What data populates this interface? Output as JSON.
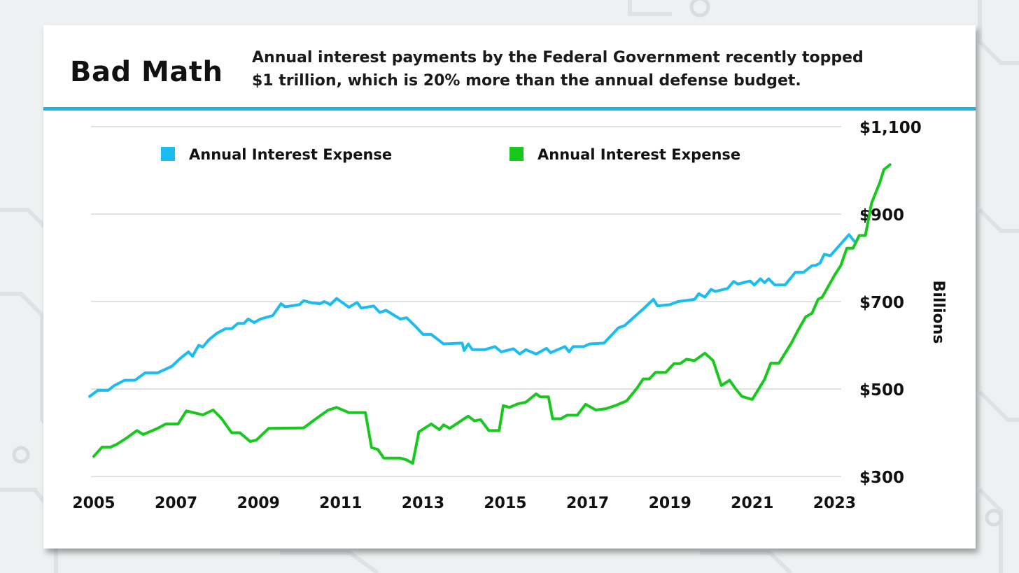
{
  "header": {
    "title": "Bad Math",
    "subtitle_line1": "Annual interest payments by the Federal Government recently topped",
    "subtitle_line2": "$1 trillion, which is 20% more than the annual defense budget."
  },
  "colors": {
    "accent": "#18b4ec",
    "series_blue": "#1bbcf0",
    "series_green": "#17c91c",
    "grid": "#cfcfcf"
  },
  "chart_data": {
    "type": "line",
    "title": "Bad Math",
    "ylabel": "Billions",
    "ylim": [
      300,
      1100
    ],
    "xlim": [
      2005,
      2023.5
    ],
    "yticks": [
      {
        "value": 300,
        "label": "$300"
      },
      {
        "value": 500,
        "label": "$500"
      },
      {
        "value": 700,
        "label": "$700"
      },
      {
        "value": 900,
        "label": "$900"
      },
      {
        "value": 1100,
        "label": "$1,100"
      }
    ],
    "xticks": [
      {
        "value": 2005,
        "label": "2005"
      },
      {
        "value": 2007,
        "label": "2007"
      },
      {
        "value": 2009,
        "label": "2009"
      },
      {
        "value": 2011,
        "label": "2011"
      },
      {
        "value": 2013,
        "label": "2013"
      },
      {
        "value": 2015,
        "label": "2015"
      },
      {
        "value": 2017,
        "label": "2017"
      },
      {
        "value": 2019,
        "label": "2019"
      },
      {
        "value": 2021,
        "label": "2021"
      },
      {
        "value": 2023,
        "label": "2023"
      }
    ],
    "legend": "top",
    "series": [
      {
        "name": "Annual Interest Expense",
        "color": "#1bbcf0",
        "points": [
          [
            2004.9,
            483
          ],
          [
            2005.1,
            497
          ],
          [
            2005.35,
            497
          ],
          [
            2005.5,
            508
          ],
          [
            2005.75,
            520
          ],
          [
            2006.0,
            520
          ],
          [
            2006.25,
            537
          ],
          [
            2006.55,
            537
          ],
          [
            2006.9,
            552
          ],
          [
            2007.1,
            570
          ],
          [
            2007.3,
            585
          ],
          [
            2007.4,
            575
          ],
          [
            2007.55,
            600
          ],
          [
            2007.65,
            596
          ],
          [
            2007.8,
            613
          ],
          [
            2008.0,
            628
          ],
          [
            2008.2,
            638
          ],
          [
            2008.35,
            638
          ],
          [
            2008.5,
            650
          ],
          [
            2008.65,
            650
          ],
          [
            2008.75,
            660
          ],
          [
            2008.9,
            652
          ],
          [
            2009.05,
            660
          ],
          [
            2009.35,
            668
          ],
          [
            2009.55,
            695
          ],
          [
            2009.65,
            688
          ],
          [
            2010.0,
            693
          ],
          [
            2010.1,
            702
          ],
          [
            2010.3,
            697
          ],
          [
            2010.5,
            695
          ],
          [
            2010.6,
            700
          ],
          [
            2010.75,
            693
          ],
          [
            2010.9,
            707
          ],
          [
            2011.2,
            687
          ],
          [
            2011.4,
            698
          ],
          [
            2011.5,
            685
          ],
          [
            2011.8,
            690
          ],
          [
            2011.95,
            675
          ],
          [
            2012.1,
            680
          ],
          [
            2012.45,
            660
          ],
          [
            2012.6,
            663
          ],
          [
            2012.8,
            645
          ],
          [
            2013.0,
            625
          ],
          [
            2013.2,
            625
          ],
          [
            2013.5,
            603
          ],
          [
            2013.95,
            605
          ],
          [
            2014.0,
            588
          ],
          [
            2014.1,
            603
          ],
          [
            2014.2,
            590
          ],
          [
            2014.5,
            590
          ],
          [
            2014.75,
            597
          ],
          [
            2014.9,
            585
          ],
          [
            2015.2,
            592
          ],
          [
            2015.35,
            580
          ],
          [
            2015.5,
            590
          ],
          [
            2015.75,
            580
          ],
          [
            2016.0,
            593
          ],
          [
            2016.1,
            583
          ],
          [
            2016.45,
            597
          ],
          [
            2016.55,
            585
          ],
          [
            2016.65,
            597
          ],
          [
            2016.9,
            597
          ],
          [
            2017.05,
            603
          ],
          [
            2017.4,
            605
          ],
          [
            2017.75,
            640
          ],
          [
            2017.9,
            645
          ],
          [
            2018.35,
            683
          ],
          [
            2018.6,
            705
          ],
          [
            2018.7,
            690
          ],
          [
            2019.0,
            693
          ],
          [
            2019.2,
            700
          ],
          [
            2019.6,
            705
          ],
          [
            2019.7,
            718
          ],
          [
            2019.85,
            710
          ],
          [
            2020.0,
            728
          ],
          [
            2020.1,
            723
          ],
          [
            2020.4,
            730
          ],
          [
            2020.55,
            746
          ],
          [
            2020.65,
            740
          ],
          [
            2020.95,
            747
          ],
          [
            2021.05,
            738
          ],
          [
            2021.2,
            752
          ],
          [
            2021.3,
            743
          ],
          [
            2021.4,
            752
          ],
          [
            2021.55,
            738
          ],
          [
            2021.8,
            738
          ],
          [
            2022.05,
            767
          ],
          [
            2022.25,
            767
          ],
          [
            2022.45,
            782
          ],
          [
            2022.55,
            783
          ],
          [
            2022.65,
            788
          ],
          [
            2022.75,
            808
          ],
          [
            2022.9,
            805
          ],
          [
            2023.35,
            853
          ],
          [
            2023.48,
            838
          ]
        ]
      },
      {
        "name": "Annual Interest Expense",
        "color": "#17c91c",
        "points": [
          [
            2005.0,
            346
          ],
          [
            2005.2,
            367
          ],
          [
            2005.4,
            367
          ],
          [
            2005.55,
            373
          ],
          [
            2005.8,
            388
          ],
          [
            2006.05,
            405
          ],
          [
            2006.2,
            396
          ],
          [
            2006.55,
            410
          ],
          [
            2006.75,
            420
          ],
          [
            2007.05,
            420
          ],
          [
            2007.25,
            450
          ],
          [
            2007.65,
            441
          ],
          [
            2007.9,
            452
          ],
          [
            2008.1,
            433
          ],
          [
            2008.35,
            400
          ],
          [
            2008.55,
            400
          ],
          [
            2008.8,
            380
          ],
          [
            2008.95,
            383
          ],
          [
            2009.25,
            410
          ],
          [
            2010.1,
            411
          ],
          [
            2010.4,
            432
          ],
          [
            2010.7,
            452
          ],
          [
            2010.9,
            458
          ],
          [
            2011.2,
            446
          ],
          [
            2011.6,
            446
          ],
          [
            2011.75,
            366
          ],
          [
            2011.9,
            362
          ],
          [
            2012.05,
            342
          ],
          [
            2012.45,
            342
          ],
          [
            2012.6,
            338
          ],
          [
            2012.75,
            330
          ],
          [
            2012.9,
            402
          ],
          [
            2013.2,
            420
          ],
          [
            2013.4,
            407
          ],
          [
            2013.5,
            418
          ],
          [
            2013.65,
            410
          ],
          [
            2014.0,
            432
          ],
          [
            2014.1,
            438
          ],
          [
            2014.25,
            427
          ],
          [
            2014.4,
            430
          ],
          [
            2014.6,
            405
          ],
          [
            2014.85,
            405
          ],
          [
            2014.95,
            462
          ],
          [
            2015.1,
            458
          ],
          [
            2015.3,
            466
          ],
          [
            2015.5,
            470
          ],
          [
            2015.75,
            489
          ],
          [
            2015.85,
            482
          ],
          [
            2016.05,
            482
          ],
          [
            2016.15,
            432
          ],
          [
            2016.35,
            432
          ],
          [
            2016.5,
            440
          ],
          [
            2016.75,
            440
          ],
          [
            2016.95,
            465
          ],
          [
            2017.2,
            452
          ],
          [
            2017.45,
            455
          ],
          [
            2017.7,
            463
          ],
          [
            2017.95,
            473
          ],
          [
            2018.2,
            502
          ],
          [
            2018.35,
            523
          ],
          [
            2018.5,
            523
          ],
          [
            2018.65,
            538
          ],
          [
            2018.9,
            538
          ],
          [
            2019.1,
            558
          ],
          [
            2019.25,
            558
          ],
          [
            2019.4,
            568
          ],
          [
            2019.6,
            565
          ],
          [
            2019.85,
            582
          ],
          [
            2020.05,
            565
          ],
          [
            2020.25,
            508
          ],
          [
            2020.45,
            520
          ],
          [
            2020.6,
            500
          ],
          [
            2020.75,
            483
          ],
          [
            2021.0,
            476
          ],
          [
            2021.3,
            522
          ],
          [
            2021.45,
            559
          ],
          [
            2021.65,
            559
          ],
          [
            2021.95,
            605
          ],
          [
            2022.1,
            632
          ],
          [
            2022.3,
            665
          ],
          [
            2022.45,
            673
          ],
          [
            2022.6,
            705
          ],
          [
            2022.7,
            710
          ],
          [
            2022.85,
            735
          ],
          [
            2023.0,
            760
          ],
          [
            2023.15,
            782
          ],
          [
            2023.3,
            822
          ],
          [
            2023.45,
            822
          ],
          [
            2023.6,
            851
          ],
          [
            2023.75,
            851
          ],
          [
            2023.9,
            925
          ],
          [
            2024.1,
            972
          ],
          [
            2024.2,
            1002
          ],
          [
            2024.35,
            1013
          ]
        ]
      }
    ]
  }
}
